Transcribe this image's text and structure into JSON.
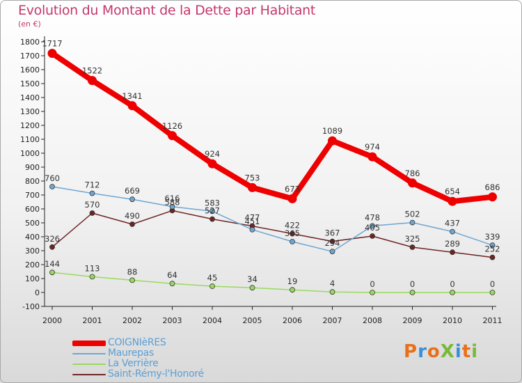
{
  "title": "Evolution du Montant de la Dette par Habitant",
  "unit_label": "(en €)",
  "logo_text": "ProXiti",
  "logo_colors": [
    "#e8701a",
    "#3a8fd8",
    "#e8701a",
    "#7ab83a",
    "#3a8fd8",
    "#e8701a",
    "#7ab83a"
  ],
  "chart_data": {
    "type": "line",
    "title": "Evolution du Montant de la Dette par Habitant",
    "ylabel": "(en €)",
    "xlabel": "",
    "ylim": [
      -100,
      1800
    ],
    "yticks": [
      -100,
      0,
      100,
      200,
      300,
      400,
      500,
      600,
      700,
      800,
      900,
      1000,
      1100,
      1200,
      1300,
      1400,
      1500,
      1600,
      1700,
      1800
    ],
    "x": [
      "2000",
      "2001",
      "2002",
      "2003",
      "2004",
      "2005",
      "2006",
      "2007",
      "2008",
      "2009",
      "2010",
      "2011"
    ],
    "grid": false,
    "legend": "bottom-left",
    "series": [
      {
        "name": "COIGNIèRES",
        "color": "#ee0000",
        "width": 8,
        "values": [
          1717,
          1522,
          1341,
          1126,
          924,
          753,
          673,
          1089,
          974,
          786,
          654,
          686
        ]
      },
      {
        "name": "Maurepas",
        "color": "#6ea6d2",
        "width": 1.5,
        "values": [
          760,
          712,
          669,
          616,
          583,
          451,
          365,
          294,
          478,
          502,
          437,
          339
        ]
      },
      {
        "name": "La Verrière",
        "color": "#99d95c",
        "width": 1.5,
        "values": [
          144,
          113,
          88,
          64,
          45,
          34,
          19,
          4,
          0,
          0,
          0,
          0
        ]
      },
      {
        "name": "Saint-Rémy-l'Honoré",
        "color": "#6e2424",
        "width": 1.5,
        "values": [
          326,
          570,
          490,
          588,
          527,
          477,
          422,
          367,
          405,
          325,
          289,
          252
        ]
      }
    ]
  }
}
